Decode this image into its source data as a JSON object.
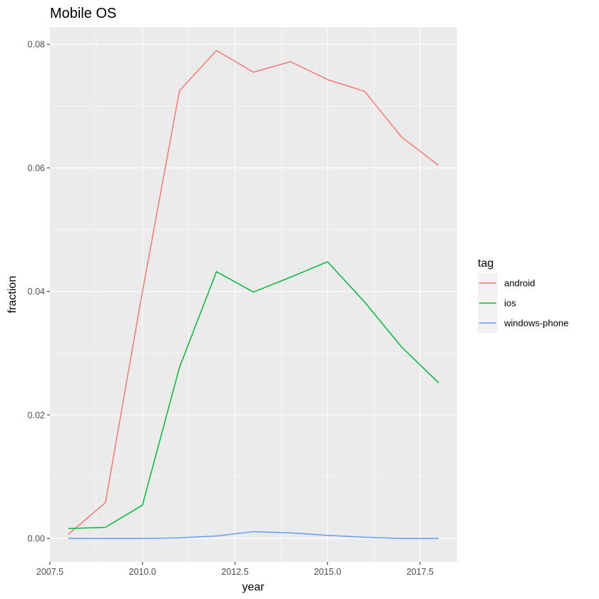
{
  "chart_data": {
    "type": "line",
    "title": "Mobile OS",
    "xlabel": "year",
    "ylabel": "fraction",
    "xlim": [
      2007.5,
      2018.5
    ],
    "ylim": [
      -0.0038,
      0.0828
    ],
    "x_ticks": [
      2007.5,
      2010.0,
      2012.5,
      2015.0,
      2017.5
    ],
    "x_tick_labels": [
      "2007.5",
      "2010.0",
      "2012.5",
      "2015.0",
      "2017.5"
    ],
    "y_ticks": [
      0.0,
      0.02,
      0.04,
      0.06,
      0.08
    ],
    "y_tick_labels": [
      "0.00",
      "0.02",
      "0.04",
      "0.06",
      "0.08"
    ],
    "grid": true,
    "panel_background": "#ebebeb",
    "legend": {
      "title": "tag",
      "position": "right"
    },
    "x": [
      2008,
      2009,
      2010,
      2011,
      2012,
      2013,
      2014,
      2015,
      2016,
      2017,
      2018
    ],
    "series": [
      {
        "name": "android",
        "color": "#f8766d",
        "values": [
          0.0007,
          0.0058,
          0.04,
          0.0725,
          0.079,
          0.0755,
          0.0772,
          0.0743,
          0.0724,
          0.065,
          0.0604
        ]
      },
      {
        "name": "ios",
        "color": "#00ba38",
        "values": [
          0.0016,
          0.0018,
          0.0054,
          0.0277,
          0.0432,
          0.0399,
          0.0423,
          0.0448,
          0.0383,
          0.031,
          0.0252
        ]
      },
      {
        "name": "windows-phone",
        "color": "#619cff",
        "values": [
          0.0,
          0.0,
          0.0,
          0.0001,
          0.0004,
          0.0011,
          0.0009,
          0.0005,
          0.0002,
          0.0,
          0.0
        ]
      }
    ]
  }
}
